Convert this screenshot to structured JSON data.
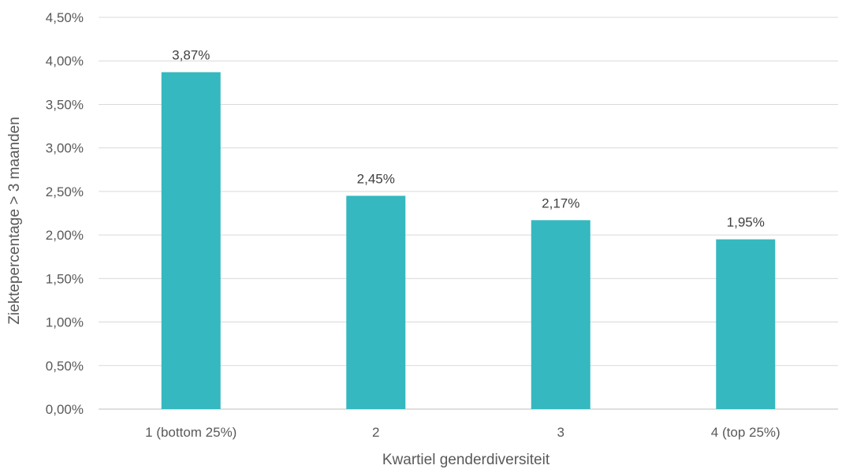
{
  "colors": {
    "bar": "#35b8bf",
    "grid": "#d9d9d9",
    "axis": "#bfbfbf",
    "text": "#595959"
  },
  "chart_data": {
    "type": "bar",
    "categories": [
      "1 (bottom 25%)",
      "2",
      "3",
      "4 (top 25%)"
    ],
    "values": [
      3.87,
      2.45,
      2.17,
      1.95
    ],
    "value_labels": [
      "3,87%",
      "2,45%",
      "2,17%",
      "1,95%"
    ],
    "title": "",
    "xlabel": "Kwartiel genderdiversiteit",
    "ylabel": "Ziektepercentage > 3 maanden",
    "ylim": [
      0,
      4.5
    ],
    "yticks": [
      0,
      0.5,
      1.0,
      1.5,
      2.0,
      2.5,
      3.0,
      3.5,
      4.0,
      4.5
    ],
    "ytick_labels": [
      "0,00%",
      "0,50%",
      "1,00%",
      "1,50%",
      "2,00%",
      "2,50%",
      "3,00%",
      "3,50%",
      "4,00%",
      "4,50%"
    ],
    "grid": true,
    "legend": "none"
  }
}
